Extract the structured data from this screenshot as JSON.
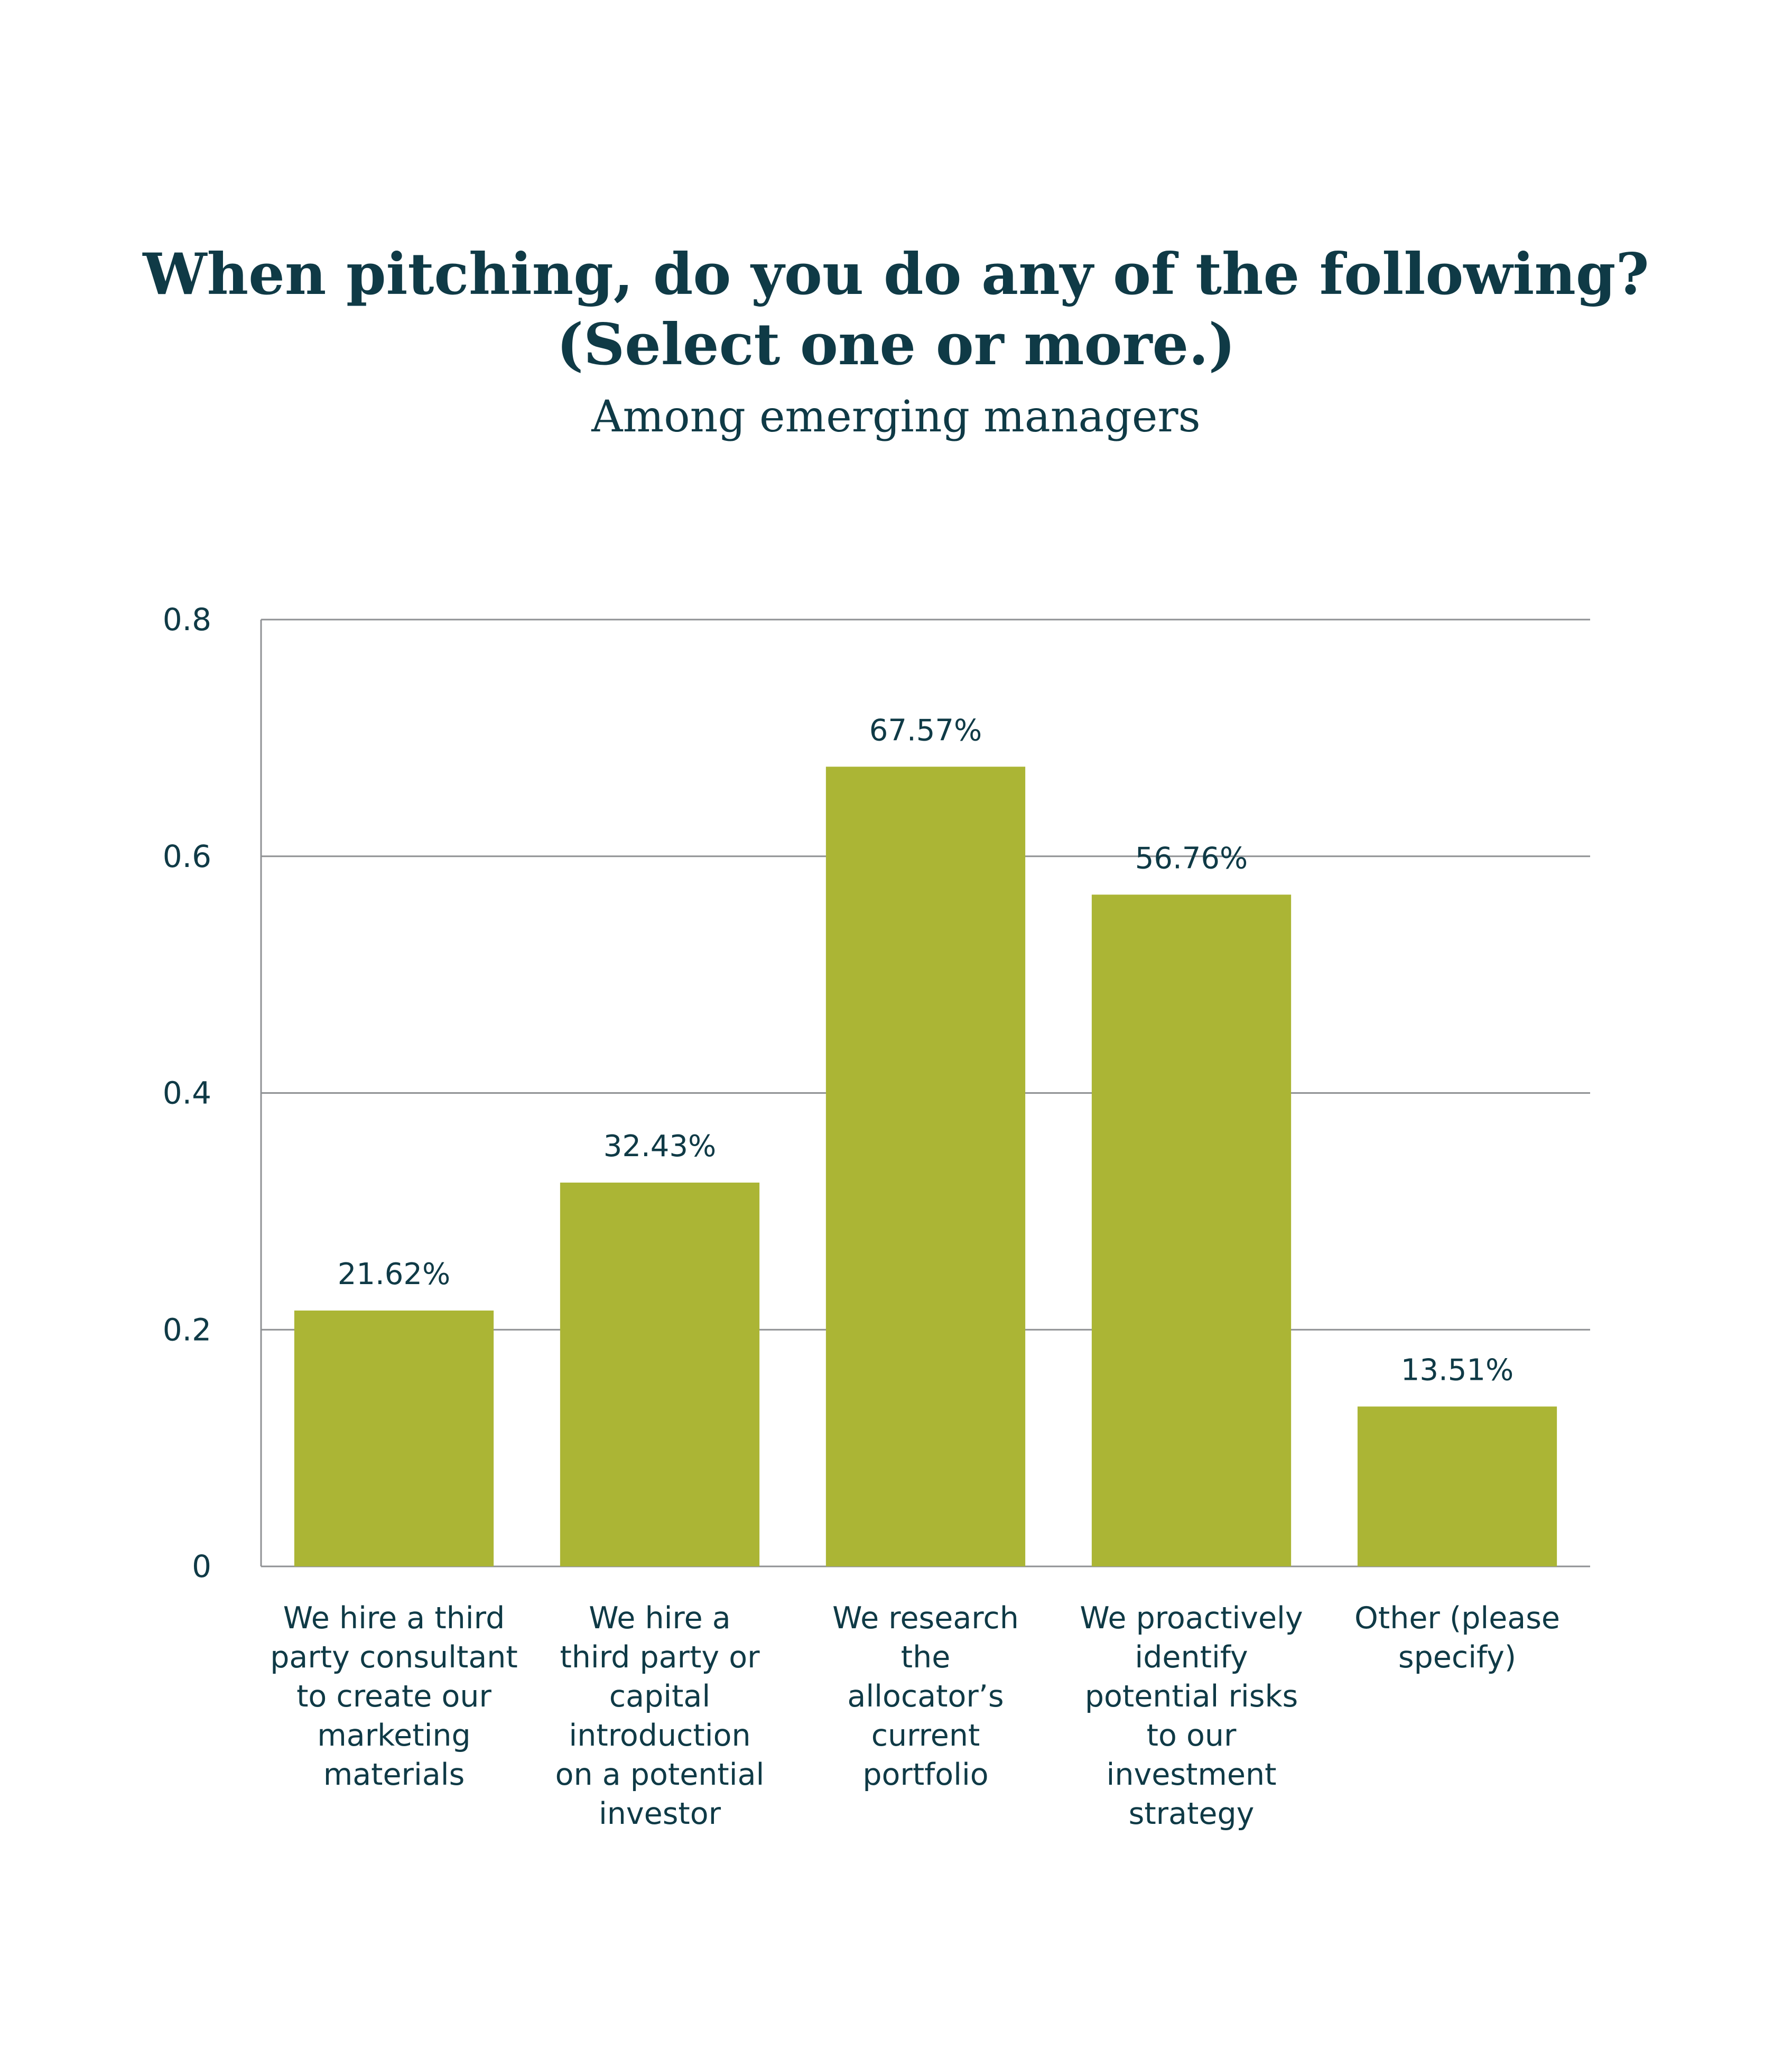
{
  "chart_data": {
    "type": "bar",
    "title": "When pitching, do you do any of the following? (Select one or more.)",
    "title_lines": [
      "When pitching, do you do any of the following?",
      "(Select one or more.)"
    ],
    "subtitle": "Among emerging managers",
    "categories": [
      "We hire a third party consultant to create our marketing materials",
      "We hire a third party or capital introduction on a potential investor",
      "We research the allocator’s current portfolio",
      "We proactively identify potential risks to our investment strategy",
      "Other (please specify)"
    ],
    "category_lines": [
      [
        "We hire a third",
        "party consultant",
        "to create our",
        "marketing",
        "materials"
      ],
      [
        "We hire a",
        "third party or",
        "capital",
        "introduction",
        "on a potential",
        "investor"
      ],
      [
        "We research",
        "the",
        "allocator’s",
        "current",
        "portfolio"
      ],
      [
        "We proactively",
        "identify",
        "potential risks",
        "to our",
        "investment",
        "strategy"
      ],
      [
        "Other (please",
        "specify)"
      ]
    ],
    "values": [
      0.2162,
      0.3243,
      0.6757,
      0.5676,
      0.1351
    ],
    "data_labels": [
      "21.62%",
      "32.43%",
      "67.57%",
      "56.76%",
      "13.51%"
    ],
    "yticks": [
      0,
      0.2,
      0.4,
      0.6,
      0.8
    ],
    "ytick_labels": [
      "0",
      "0.2",
      "0.4",
      "0.6",
      "0.8"
    ],
    "ylim": [
      0,
      0.8
    ],
    "xlabel": "",
    "ylabel": "",
    "grid": true,
    "legend": "none",
    "colors": {
      "bar": "#abb535",
      "text": "#0f3a46",
      "grid": "#8f9194",
      "axis": "#8f9194"
    }
  }
}
